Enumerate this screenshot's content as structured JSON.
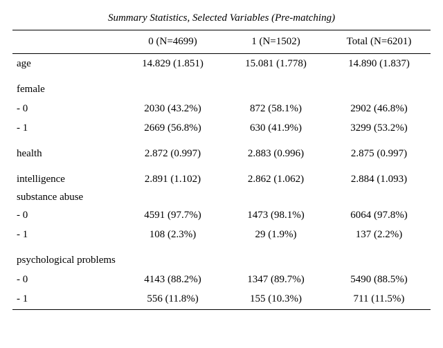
{
  "title": "Summary Statistics, Selected Variables (Pre-matching)",
  "typography": {
    "font_family": "Garamond",
    "title_fontsize_pt": 12,
    "body_fontsize_pt": 12
  },
  "colors": {
    "background": "#ffffff",
    "text": "#000000",
    "rule": "#000000"
  },
  "columns": [
    {
      "key": "label",
      "header": ""
    },
    {
      "key": "g0",
      "header": "0 (N=4699)"
    },
    {
      "key": "g1",
      "header": "1 (N=1502)"
    },
    {
      "key": "tot",
      "header": "Total (N=6201)"
    }
  ],
  "rows": [
    {
      "class": "",
      "label": "age",
      "g0": "14.829 (1.851)",
      "g1": "15.081 (1.778)",
      "tot": "14.890 (1.837)"
    },
    {
      "class": "section",
      "label": "female",
      "g0": "",
      "g1": "",
      "tot": ""
    },
    {
      "class": "",
      "label": "- 0",
      "g0": "2030 (43.2%)",
      "g1": "872 (58.1%)",
      "tot": "2902 (46.8%)"
    },
    {
      "class": "",
      "label": "- 1",
      "g0": "2669 (56.8%)",
      "g1": "630 (41.9%)",
      "tot": "3299 (53.2%)"
    },
    {
      "class": "section",
      "label": "health",
      "g0": "2.872 (0.997)",
      "g1": "2.883 (0.996)",
      "tot": "2.875 (0.997)"
    },
    {
      "class": "section",
      "label": "intelligence",
      "g0": "2.891 (1.102)",
      "g1": "2.862 (1.062)",
      "tot": "2.884 (1.093)"
    },
    {
      "class": "tight",
      "label": "substance abuse",
      "g0": "",
      "g1": "",
      "tot": ""
    },
    {
      "class": "",
      "label": "- 0",
      "g0": "4591 (97.7%)",
      "g1": "1473 (98.1%)",
      "tot": "6064 (97.8%)"
    },
    {
      "class": "",
      "label": "- 1",
      "g0": "108 (2.3%)",
      "g1": "29 (1.9%)",
      "tot": "137 (2.2%)"
    },
    {
      "class": "section",
      "label": "psychological problems",
      "g0": "",
      "g1": "",
      "tot": ""
    },
    {
      "class": "",
      "label": "- 0",
      "g0": "4143 (88.2%)",
      "g1": "1347 (89.7%)",
      "tot": "5490 (88.5%)"
    },
    {
      "class": "last",
      "label": "- 1",
      "g0": "556 (11.8%)",
      "g1": "155 (10.3%)",
      "tot": "711 (11.5%)"
    }
  ]
}
